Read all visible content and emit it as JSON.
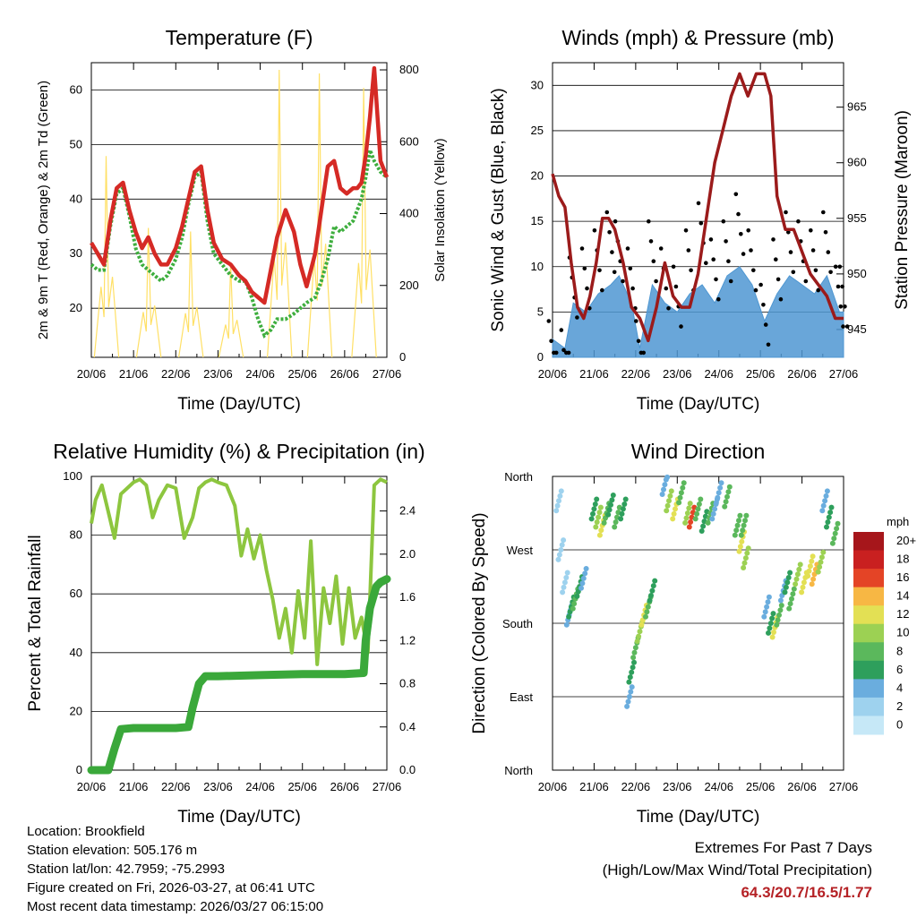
{
  "colors": {
    "temp2m": "#d52a25",
    "temp9m": "#e68a2c",
    "dewpoint": "#3eae3e",
    "solar": "#ffe066",
    "wind": "#4f97d2",
    "gust": "#000000",
    "pressure": "#9b1b1b",
    "rh": "#8dc63f",
    "precip": "#3aa83a",
    "speed_scale": [
      "#c6e8f7",
      "#9ed2ee",
      "#6aadde",
      "#3c86c4",
      "#2e9f5c",
      "#5bb85c",
      "#9cd153",
      "#e3e054",
      "#f7b744",
      "#f07a2c",
      "#e44426",
      "#c92020",
      "#a6161b"
    ]
  },
  "chart_data": [
    {
      "id": "temperature",
      "type": "line",
      "title": "Temperature (F)",
      "xlabel": "Time (Day/UTC)",
      "ylabel": "2m & 9m T (Red, Orange) & 2m Td (Green)",
      "y2label": "Solar Insolation (Yellow)",
      "x_ticks": [
        "20/06",
        "21/06",
        "22/06",
        "23/06",
        "24/06",
        "25/06",
        "26/06",
        "27/06"
      ],
      "xlim": [
        0,
        7
      ],
      "ylim": [
        11,
        65
      ],
      "y_ticks": [
        20,
        30,
        40,
        50,
        60
      ],
      "y2lim": [
        0,
        820
      ],
      "y2_ticks": [
        0,
        200,
        400,
        600,
        800
      ],
      "series": [
        {
          "name": "2m/9m T",
          "x": [
            0,
            0.15,
            0.3,
            0.45,
            0.6,
            0.75,
            0.9,
            1.05,
            1.2,
            1.35,
            1.5,
            1.65,
            1.8,
            2.0,
            2.15,
            2.3,
            2.45,
            2.6,
            2.75,
            2.9,
            3.1,
            3.3,
            3.5,
            3.65,
            3.8,
            3.95,
            4.1,
            4.25,
            4.4,
            4.6,
            4.8,
            4.95,
            5.1,
            5.3,
            5.45,
            5.6,
            5.75,
            5.9,
            6.05,
            6.2,
            6.3,
            6.4,
            6.5,
            6.6,
            6.7,
            6.85,
            7.0
          ],
          "values": [
            32,
            30,
            28,
            36,
            42,
            43,
            38,
            34,
            31,
            33,
            30,
            28,
            28,
            31,
            35,
            40,
            45,
            46,
            38,
            32,
            29,
            28,
            26,
            25,
            23,
            22,
            21,
            27,
            33,
            38,
            34,
            28,
            24,
            30,
            38,
            46,
            47,
            42,
            41,
            42,
            42,
            43,
            48,
            55,
            64,
            47,
            44
          ]
        },
        {
          "name": "2m Td",
          "x": [
            0,
            0.15,
            0.3,
            0.45,
            0.6,
            0.75,
            0.9,
            1.05,
            1.2,
            1.35,
            1.5,
            1.65,
            1.8,
            2.0,
            2.15,
            2.3,
            2.45,
            2.6,
            2.75,
            2.9,
            3.1,
            3.3,
            3.5,
            3.65,
            3.8,
            3.95,
            4.1,
            4.25,
            4.4,
            4.6,
            4.8,
            4.95,
            5.1,
            5.3,
            5.45,
            5.6,
            5.75,
            5.9,
            6.05,
            6.2,
            6.3,
            6.4,
            6.5,
            6.6,
            6.7,
            6.85,
            7.0
          ],
          "values": [
            28,
            27,
            27,
            35,
            41,
            42,
            37,
            31,
            28,
            27,
            26,
            25,
            26,
            29,
            33,
            39,
            44,
            45,
            36,
            30,
            28,
            26,
            25,
            25,
            22,
            18,
            15,
            16,
            18,
            18,
            19,
            20,
            21,
            22,
            25,
            29,
            35,
            34,
            35,
            36,
            38,
            40,
            44,
            49,
            47,
            45,
            44
          ]
        }
      ],
      "solar_peaks": [
        {
          "x": 0.35,
          "value": 560
        },
        {
          "x": 1.35,
          "value": 360
        },
        {
          "x": 2.35,
          "value": 350
        },
        {
          "x": 3.3,
          "value": 260
        },
        {
          "x": 4.45,
          "value": 800
        },
        {
          "x": 5.4,
          "value": 790
        },
        {
          "x": 6.45,
          "value": 750
        }
      ]
    },
    {
      "id": "winds",
      "type": "line",
      "title": "Winds (mph) & Pressure (mb)",
      "xlabel": "Time (Day/UTC)",
      "ylabel": "Sonic Wind & Gust (Blue, Black)",
      "y2label": "Station Pressure (Maroon)",
      "x_ticks": [
        "20/06",
        "21/06",
        "22/06",
        "23/06",
        "24/06",
        "25/06",
        "26/06",
        "27/06"
      ],
      "xlim": [
        0,
        7
      ],
      "ylim": [
        0,
        32.5
      ],
      "y_ticks": [
        0,
        5,
        10,
        15,
        20,
        25,
        30
      ],
      "y2lim": [
        942.5,
        969
      ],
      "y2_ticks": [
        945,
        950,
        955,
        960,
        965
      ],
      "series": [
        {
          "name": "wind",
          "x": [
            0,
            0.3,
            0.5,
            0.8,
            1.1,
            1.4,
            1.6,
            1.9,
            2.1,
            2.4,
            2.7,
            3.0,
            3.3,
            3.6,
            3.9,
            4.2,
            4.5,
            4.8,
            5.1,
            5.4,
            5.7,
            6.0,
            6.3,
            6.6,
            6.9,
            7.0
          ],
          "values": [
            2,
            1,
            6,
            5,
            7,
            8,
            9,
            6,
            1,
            8,
            6,
            5,
            7,
            8,
            6,
            9,
            10,
            8,
            4,
            7,
            9,
            8,
            7,
            9,
            5,
            5
          ]
        },
        {
          "name": "gust",
          "x": [
            0,
            0.3,
            0.5,
            0.8,
            1.1,
            1.4,
            1.6,
            1.9,
            2.1,
            2.4,
            2.7,
            3.0,
            3.3,
            3.6,
            3.9,
            4.2,
            4.5,
            4.8,
            5.1,
            5.4,
            5.7,
            6.0,
            6.3,
            6.6,
            6.9,
            7.0
          ],
          "values": [
            4,
            3,
            11,
            12,
            14,
            16,
            15,
            12,
            4,
            15,
            12,
            10,
            14,
            17,
            13,
            15,
            18,
            14,
            8,
            13,
            16,
            15,
            14,
            16,
            10,
            10
          ]
        },
        {
          "name": "pressure",
          "x": [
            0,
            0.15,
            0.3,
            0.45,
            0.6,
            0.75,
            0.9,
            1.05,
            1.2,
            1.35,
            1.5,
            1.7,
            1.9,
            2.1,
            2.3,
            2.5,
            2.7,
            2.9,
            3.1,
            3.3,
            3.5,
            3.7,
            3.9,
            4.1,
            4.3,
            4.5,
            4.7,
            4.9,
            5.1,
            5.25,
            5.4,
            5.6,
            5.8,
            6.0,
            6.2,
            6.4,
            6.6,
            6.8,
            7.0
          ],
          "values": [
            959,
            957,
            956,
            951,
            947,
            946,
            948,
            951,
            955,
            955,
            954,
            951,
            947,
            946,
            944,
            947,
            951,
            948,
            947,
            947,
            950,
            955,
            960,
            963,
            966,
            968,
            966,
            968,
            968,
            966,
            957,
            954,
            954,
            952,
            950,
            949,
            948,
            946,
            946
          ]
        }
      ]
    },
    {
      "id": "humidity",
      "type": "line",
      "title": "Relative Humidity (%) & Precipitation (in)",
      "xlabel": "Time (Day/UTC)",
      "ylabel": "Percent & Total Rainfall",
      "x_ticks": [
        "20/06",
        "21/06",
        "22/06",
        "23/06",
        "24/06",
        "25/06",
        "26/06",
        "27/06"
      ],
      "xlim": [
        0,
        7
      ],
      "ylim": [
        0,
        100
      ],
      "y_ticks": [
        0,
        20,
        40,
        60,
        80,
        100
      ],
      "y2lim": [
        0,
        2.72
      ],
      "y2_ticks": [
        "0.0",
        "0.4",
        "0.8",
        "1.2",
        "1.6",
        "2.0",
        "2.4"
      ],
      "series": [
        {
          "name": "RH",
          "x": [
            0,
            0.1,
            0.25,
            0.4,
            0.55,
            0.7,
            0.85,
            1.0,
            1.15,
            1.3,
            1.45,
            1.6,
            1.8,
            2.0,
            2.2,
            2.4,
            2.55,
            2.7,
            2.85,
            3.0,
            3.2,
            3.4,
            3.55,
            3.7,
            3.85,
            4.0,
            4.15,
            4.3,
            4.45,
            4.6,
            4.75,
            4.9,
            5.05,
            5.2,
            5.35,
            5.5,
            5.65,
            5.8,
            5.95,
            6.1,
            6.25,
            6.4,
            6.55,
            6.7,
            6.85,
            7.0
          ],
          "values": [
            84,
            92,
            97,
            88,
            79,
            94,
            96,
            98,
            99,
            97,
            86,
            92,
            97,
            96,
            79,
            86,
            96,
            98,
            99,
            98,
            97,
            90,
            73,
            82,
            72,
            80,
            68,
            58,
            45,
            55,
            40,
            61,
            45,
            78,
            36,
            62,
            50,
            66,
            43,
            62,
            45,
            52,
            40,
            97,
            99,
            98
          ]
        },
        {
          "name": "Total Rainfall",
          "x": [
            0,
            0.4,
            0.55,
            0.7,
            1.0,
            2.0,
            2.3,
            2.4,
            2.55,
            2.7,
            3.0,
            4.0,
            5.0,
            6.0,
            6.45,
            6.5,
            6.6,
            6.75,
            6.85,
            7.0
          ],
          "values": [
            0.0,
            0.0,
            0.2,
            0.38,
            0.39,
            0.39,
            0.4,
            0.58,
            0.8,
            0.87,
            0.87,
            0.88,
            0.89,
            0.89,
            0.9,
            1.2,
            1.5,
            1.7,
            1.74,
            1.77
          ]
        }
      ]
    },
    {
      "id": "direction",
      "type": "scatter",
      "title": "Wind Direction",
      "xlabel": "Time (Day/UTC)",
      "ylabel": "Direction (Colored By Speed)",
      "x_ticks": [
        "20/06",
        "21/06",
        "22/06",
        "23/06",
        "24/06",
        "25/06",
        "26/06",
        "27/06"
      ],
      "xlim": [
        0,
        7
      ],
      "y_ticks": [
        "North",
        "West",
        "South",
        "East",
        "North"
      ],
      "colorbar_title": "mph",
      "colorbar_labels": [
        "20+",
        "18",
        "16",
        "14",
        "12",
        "10",
        "8",
        "6",
        "4",
        "2",
        "0"
      ],
      "points": [
        {
          "x": 0.15,
          "dir": 330,
          "speed": 2
        },
        {
          "x": 0.2,
          "dir": 270,
          "speed": 1
        },
        {
          "x": 0.3,
          "dir": 230,
          "speed": 2
        },
        {
          "x": 0.4,
          "dir": 190,
          "speed": 4
        },
        {
          "x": 0.45,
          "dir": 200,
          "speed": 6
        },
        {
          "x": 0.55,
          "dir": 210,
          "speed": 8
        },
        {
          "x": 0.65,
          "dir": 225,
          "speed": 6
        },
        {
          "x": 0.75,
          "dir": 235,
          "speed": 4
        },
        {
          "x": 1.0,
          "dir": 320,
          "speed": 6
        },
        {
          "x": 1.1,
          "dir": 310,
          "speed": 10
        },
        {
          "x": 1.2,
          "dir": 300,
          "speed": 12
        },
        {
          "x": 1.3,
          "dir": 315,
          "speed": 8
        },
        {
          "x": 1.4,
          "dir": 325,
          "speed": 6
        },
        {
          "x": 1.55,
          "dir": 310,
          "speed": 8
        },
        {
          "x": 1.7,
          "dir": 320,
          "speed": 6
        },
        {
          "x": 1.85,
          "dir": 90,
          "speed": 4
        },
        {
          "x": 1.9,
          "dir": 120,
          "speed": 6
        },
        {
          "x": 2.0,
          "dir": 150,
          "speed": 8
        },
        {
          "x": 2.1,
          "dir": 170,
          "speed": 10
        },
        {
          "x": 2.2,
          "dir": 190,
          "speed": 12
        },
        {
          "x": 2.3,
          "dir": 200,
          "speed": 8
        },
        {
          "x": 2.4,
          "dir": 220,
          "speed": 6
        },
        {
          "x": 2.7,
          "dir": 350,
          "speed": 4
        },
        {
          "x": 2.8,
          "dir": 330,
          "speed": 10
        },
        {
          "x": 2.95,
          "dir": 320,
          "speed": 12
        },
        {
          "x": 3.1,
          "dir": 340,
          "speed": 8
        },
        {
          "x": 3.25,
          "dir": 315,
          "speed": 10
        },
        {
          "x": 3.35,
          "dir": 310,
          "speed": 16
        },
        {
          "x": 3.5,
          "dir": 320,
          "speed": 8
        },
        {
          "x": 3.65,
          "dir": 305,
          "speed": 6
        },
        {
          "x": 3.8,
          "dir": 315,
          "speed": 8
        },
        {
          "x": 3.9,
          "dir": 320,
          "speed": 4
        },
        {
          "x": 4.0,
          "dir": 340,
          "speed": 4
        },
        {
          "x": 4.2,
          "dir": 335,
          "speed": 8
        },
        {
          "x": 4.45,
          "dir": 300,
          "speed": 8
        },
        {
          "x": 4.55,
          "dir": 280,
          "speed": 12
        },
        {
          "x": 4.65,
          "dir": 260,
          "speed": 10
        },
        {
          "x": 4.6,
          "dir": 300,
          "speed": 8
        },
        {
          "x": 5.15,
          "dir": 200,
          "speed": 4
        },
        {
          "x": 5.25,
          "dir": 180,
          "speed": 6
        },
        {
          "x": 5.35,
          "dir": 175,
          "speed": 12
        },
        {
          "x": 5.45,
          "dir": 190,
          "speed": 8
        },
        {
          "x": 5.55,
          "dir": 220,
          "speed": 4
        },
        {
          "x": 5.65,
          "dir": 230,
          "speed": 6
        },
        {
          "x": 5.75,
          "dir": 210,
          "speed": 8
        },
        {
          "x": 5.9,
          "dir": 240,
          "speed": 10
        },
        {
          "x": 6.05,
          "dir": 230,
          "speed": 12
        },
        {
          "x": 6.2,
          "dir": 250,
          "speed": 12
        },
        {
          "x": 6.3,
          "dir": 240,
          "speed": 14
        },
        {
          "x": 6.45,
          "dir": 255,
          "speed": 10
        },
        {
          "x": 6.55,
          "dir": 330,
          "speed": 4
        },
        {
          "x": 6.65,
          "dir": 310,
          "speed": 6
        },
        {
          "x": 6.8,
          "dir": 290,
          "speed": 8
        }
      ]
    }
  ],
  "info": {
    "location": "Location: Brookfield",
    "elevation": "Station elevation: 505.176 m",
    "latlon": "Station lat/lon: 42.7959; -75.2993",
    "created": "Figure created on Fri, 2026-03-27, at 06:41 UTC",
    "timestamp": "Most recent data timestamp: 2026/03/27 06:15:00"
  },
  "extremes": {
    "title": "Extremes For Past 7 Days",
    "subtitle": "(High/Low/Max Wind/Total Precipitation)",
    "values": "64.3/20.7/16.5/1.77"
  }
}
